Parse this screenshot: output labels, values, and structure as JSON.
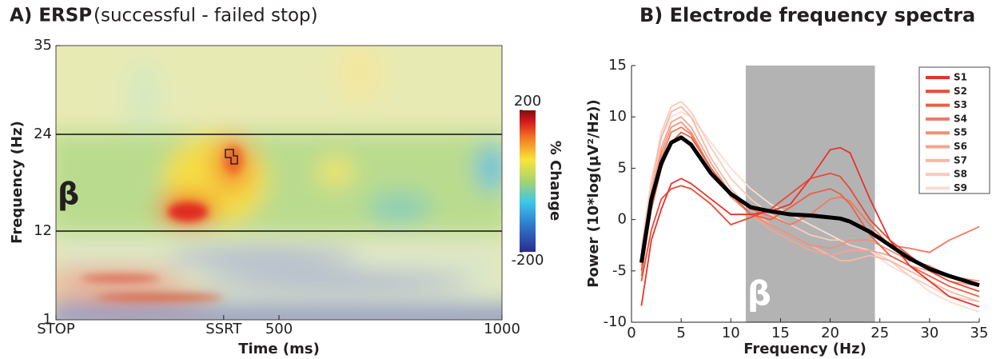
{
  "chart_data": [
    {
      "type": "heatmap",
      "title": "A) ERSP",
      "subtitle": "(successful - failed stop)",
      "x_label": "Time (ms)",
      "y_label": "Frequency (Hz)",
      "xlim": [
        0,
        1000
      ],
      "xticks": [
        {
          "value": 0,
          "label": "STOP"
        },
        {
          "value": 376,
          "label": "SSRT"
        },
        500,
        1000
      ],
      "ylim": [
        1,
        35
      ],
      "yticks": [
        1,
        12,
        24,
        35
      ],
      "band": [
        12,
        24
      ],
      "band_label": "β",
      "colorbar_label": "% Change",
      "zlim": [
        -200,
        200
      ],
      "cticks": [
        -200,
        200
      ]
    },
    {
      "type": "line",
      "title": "B) Electrode frequency spectra",
      "x_label": "Frequency (Hz)",
      "y_label": "Power (10*log(µV²/Hz))",
      "xlim": [
        0,
        35
      ],
      "xticks": [
        0,
        5,
        10,
        15,
        20,
        25,
        30,
        35
      ],
      "ylim": [
        -10,
        15
      ],
      "yticks": [
        -10,
        -5,
        0,
        5,
        10,
        15
      ],
      "shade": [
        11.5,
        24.5
      ],
      "shade_color": "#b3b3b3",
      "shade_label": "β",
      "x": [
        1,
        2,
        3,
        4,
        5,
        6,
        8,
        10,
        12,
        14,
        16,
        18,
        20,
        21,
        22,
        24,
        26,
        28,
        30,
        32,
        35
      ],
      "series": [
        {
          "name": "S9",
          "color": "#fbdcd2",
          "values": [
            -2.5,
            4,
            8,
            10,
            10.5,
            10,
            7.5,
            5,
            3,
            1.5,
            0.5,
            -0.5,
            -1.5,
            -2,
            -2.5,
            -3,
            -4.5,
            -5.5,
            -7,
            -8,
            -9
          ]
        },
        {
          "name": "S8",
          "color": "#f9cbbd",
          "values": [
            -3,
            3.5,
            8.5,
            11,
            11.5,
            10.5,
            7,
            4,
            2,
            0.5,
            -0.5,
            -1.5,
            -2,
            -2,
            -2.5,
            -3,
            -4,
            -5.5,
            -6.5,
            -7.5,
            -8
          ]
        },
        {
          "name": "S7",
          "color": "#f7b9a6",
          "values": [
            -3.5,
            3,
            8,
            10.5,
            11,
            10,
            6,
            3,
            1,
            -0.5,
            -1.5,
            -2.5,
            -3.5,
            -4,
            -4,
            -3.5,
            -4,
            -5,
            -6,
            -7,
            -8
          ]
        },
        {
          "name": "S6",
          "color": "#f4a58f",
          "values": [
            -4,
            2.5,
            7,
            9.5,
            10,
            9,
            5.5,
            2.5,
            0.5,
            -1,
            -2,
            -3,
            -3.5,
            -3.2,
            -3,
            -3,
            -3.5,
            -4.5,
            -5,
            -6,
            -6.5
          ]
        },
        {
          "name": "S5",
          "color": "#f28f76",
          "values": [
            -4.5,
            2,
            6.5,
            9,
            9.5,
            8.5,
            5,
            2.2,
            0.5,
            -0.5,
            -1.5,
            -2.5,
            -2.8,
            -2.5,
            -2,
            -2,
            -3,
            -4,
            -4.5,
            -5.5,
            -6
          ]
        },
        {
          "name": "S4",
          "color": "#ef7a60",
          "values": [
            -5.5,
            1.5,
            6,
            8.5,
            9,
            8.3,
            5,
            2.5,
            1,
            0.3,
            -0.5,
            0.5,
            2,
            2.2,
            1.8,
            -0.5,
            -2.5,
            -2.8,
            -3.2,
            -2,
            -0.7
          ]
        },
        {
          "name": "S3",
          "color": "#ec5f45",
          "values": [
            -5,
            1,
            5,
            7.5,
            8.5,
            8,
            5,
            2.5,
            0.5,
            0,
            1.2,
            2.5,
            3,
            2.5,
            1.5,
            -1.5,
            -3.5,
            -4.5,
            -5.5,
            -6.5,
            -7.5
          ]
        },
        {
          "name": "S2",
          "color": "#ea4a35",
          "values": [
            -6,
            -1,
            2,
            3,
            3.3,
            3,
            1.5,
            -0.5,
            0.2,
            1,
            2.5,
            4,
            4.5,
            4.2,
            3,
            0,
            -2,
            -3.5,
            -5,
            -6,
            -7
          ]
        },
        {
          "name": "S1",
          "color": "#e8322b",
          "values": [
            -8.4,
            -2,
            1,
            3.5,
            4,
            3.5,
            2,
            0.5,
            0.5,
            0.8,
            1.5,
            4,
            6.8,
            7,
            6.5,
            2,
            -2,
            -4.5,
            -6,
            -7.5,
            -8.5
          ]
        },
        {
          "color": "#000000",
          "width": 5,
          "values": [
            -4.2,
            2,
            5.5,
            7.5,
            8,
            7.3,
            4.5,
            2.5,
            1.2,
            0.8,
            0.5,
            0.4,
            0.2,
            0.1,
            -0.2,
            -1.2,
            -2.5,
            -3.8,
            -4.8,
            -5.5,
            -6.4
          ]
        }
      ]
    }
  ]
}
